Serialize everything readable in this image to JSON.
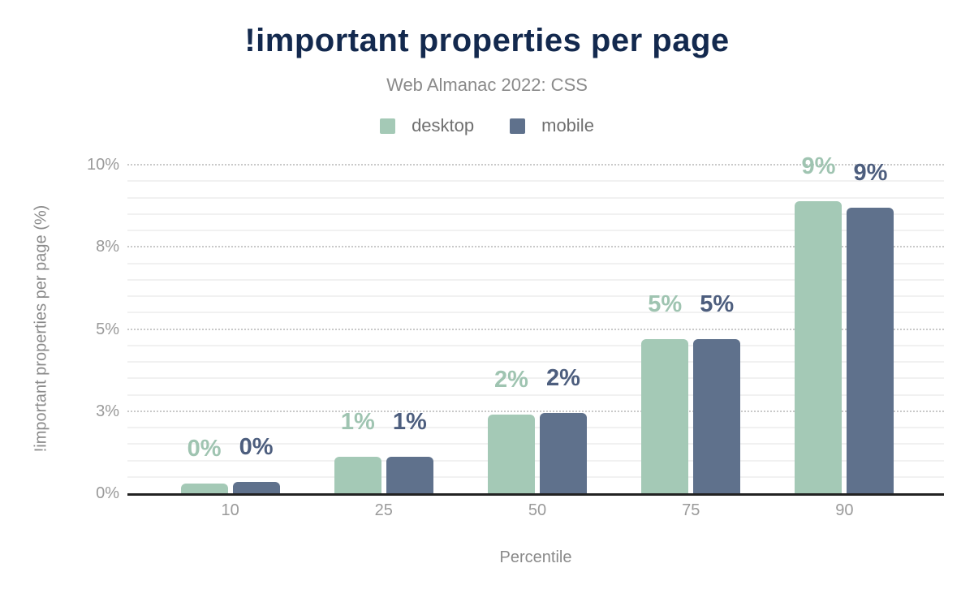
{
  "chart_data": {
    "type": "bar",
    "title": "!important properties per page",
    "subtitle": "Web Almanac 2022: CSS",
    "xlabel": "Percentile",
    "ylabel": "!important properties per page (%)",
    "categories": [
      "10",
      "25",
      "50",
      "75",
      "90"
    ],
    "series": [
      {
        "name": "desktop",
        "color": "#a4c9b6",
        "label_color": "#9fc4b1",
        "values": [
          0.3,
          1.1,
          2.4,
          4.7,
          8.9
        ],
        "labels": [
          "0%",
          "1%",
          "2%",
          "5%",
          "9%"
        ]
      },
      {
        "name": "mobile",
        "color": "#5f718c",
        "label_color": "#4d5e7e",
        "values": [
          0.35,
          1.1,
          2.45,
          4.7,
          8.7
        ],
        "labels": [
          "0%",
          "1%",
          "2%",
          "5%",
          "9%"
        ]
      }
    ],
    "y_axis": {
      "min": 0,
      "max": 10,
      "ticks": [
        {
          "value": 0,
          "label": "0%"
        },
        {
          "value": 2.5,
          "label": "3%"
        },
        {
          "value": 5,
          "label": "5%"
        },
        {
          "value": 7.5,
          "label": "8%"
        },
        {
          "value": 10,
          "label": "10%"
        }
      ],
      "minor_step": 0.5
    },
    "legend_position": "top",
    "grid": "on",
    "style": {
      "title_color": "#13294e",
      "subtitle_color": "#8a8a8a",
      "axis_text_color": "#9a9a9a",
      "axis_title_color": "#8a8a8a",
      "legend_text_color": "#6f6f6f",
      "axis_line_color": "#222222",
      "major_grid_color": "#c9c9c9",
      "minor_grid_color": "#f1f1f1",
      "background": "#ffffff"
    }
  }
}
